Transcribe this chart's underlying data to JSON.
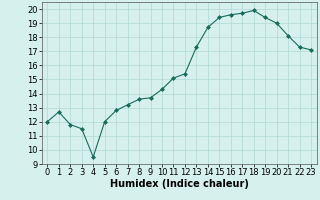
{
  "x": [
    0,
    1,
    2,
    3,
    4,
    5,
    6,
    7,
    8,
    9,
    10,
    11,
    12,
    13,
    14,
    15,
    16,
    17,
    18,
    19,
    20,
    21,
    22,
    23
  ],
  "y": [
    12,
    12.7,
    11.8,
    11.5,
    9.5,
    12,
    12.8,
    13.2,
    13.6,
    13.7,
    14.3,
    15.1,
    15.4,
    17.3,
    18.7,
    19.4,
    19.6,
    19.7,
    19.9,
    19.4,
    19.0,
    18.1,
    17.3,
    17.1
  ],
  "xlabel": "Humidex (Indice chaleur)",
  "ylim": [
    9,
    20.5
  ],
  "xlim": [
    -0.5,
    23.5
  ],
  "yticks": [
    9,
    10,
    11,
    12,
    13,
    14,
    15,
    16,
    17,
    18,
    19,
    20
  ],
  "xticks": [
    0,
    1,
    2,
    3,
    4,
    5,
    6,
    7,
    8,
    9,
    10,
    11,
    12,
    13,
    14,
    15,
    16,
    17,
    18,
    19,
    20,
    21,
    22,
    23
  ],
  "line_color": "#1a6b5a",
  "marker": "D",
  "marker_size": 2,
  "bg_color": "#d6f0ee",
  "grid_color": "#b0d8d4",
  "xlabel_fontsize": 7,
  "tick_fontsize": 6
}
